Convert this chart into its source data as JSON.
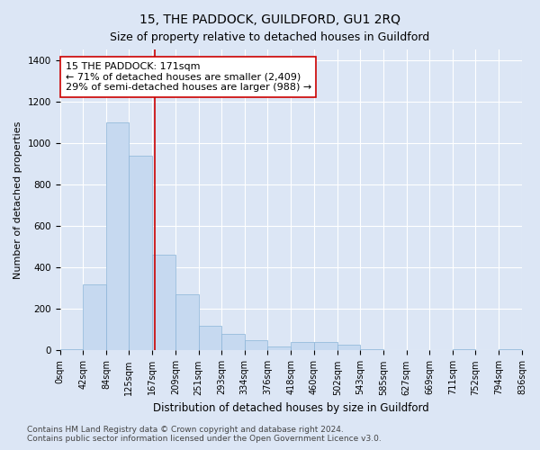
{
  "title": "15, THE PADDOCK, GUILDFORD, GU1 2RQ",
  "subtitle": "Size of property relative to detached houses in Guildford",
  "xlabel": "Distribution of detached houses by size in Guildford",
  "ylabel": "Number of detached properties",
  "footer_line1": "Contains HM Land Registry data © Crown copyright and database right 2024.",
  "footer_line2": "Contains public sector information licensed under the Open Government Licence v3.0.",
  "annotation_line1": "15 THE PADDOCK: 171sqm",
  "annotation_line2": "← 71% of detached houses are smaller (2,409)",
  "annotation_line3": "29% of semi-detached houses are larger (988) →",
  "red_line_x": 171,
  "bin_edges": [
    0,
    42,
    84,
    125,
    167,
    209,
    251,
    293,
    334,
    376,
    418,
    460,
    502,
    543,
    585,
    627,
    669,
    711,
    752,
    794,
    836
  ],
  "bar_heights": [
    5,
    320,
    1100,
    940,
    460,
    270,
    120,
    80,
    50,
    20,
    40,
    40,
    30,
    5,
    0,
    0,
    0,
    5,
    0,
    5
  ],
  "bar_color": "#c6d9f0",
  "bar_edge_color": "#8ab4d8",
  "red_line_color": "#cc0000",
  "background_color": "#dce6f5",
  "grid_color": "#ffffff",
  "ylim": [
    0,
    1450
  ],
  "yticks": [
    0,
    200,
    400,
    600,
    800,
    1000,
    1200,
    1400
  ],
  "annotation_box_facecolor": "#ffffff",
  "annotation_box_edgecolor": "#cc0000",
  "title_fontsize": 10,
  "subtitle_fontsize": 9,
  "tick_label_fontsize": 7,
  "ylabel_fontsize": 8,
  "xlabel_fontsize": 8.5,
  "annotation_fontsize": 8,
  "footer_fontsize": 6.5
}
